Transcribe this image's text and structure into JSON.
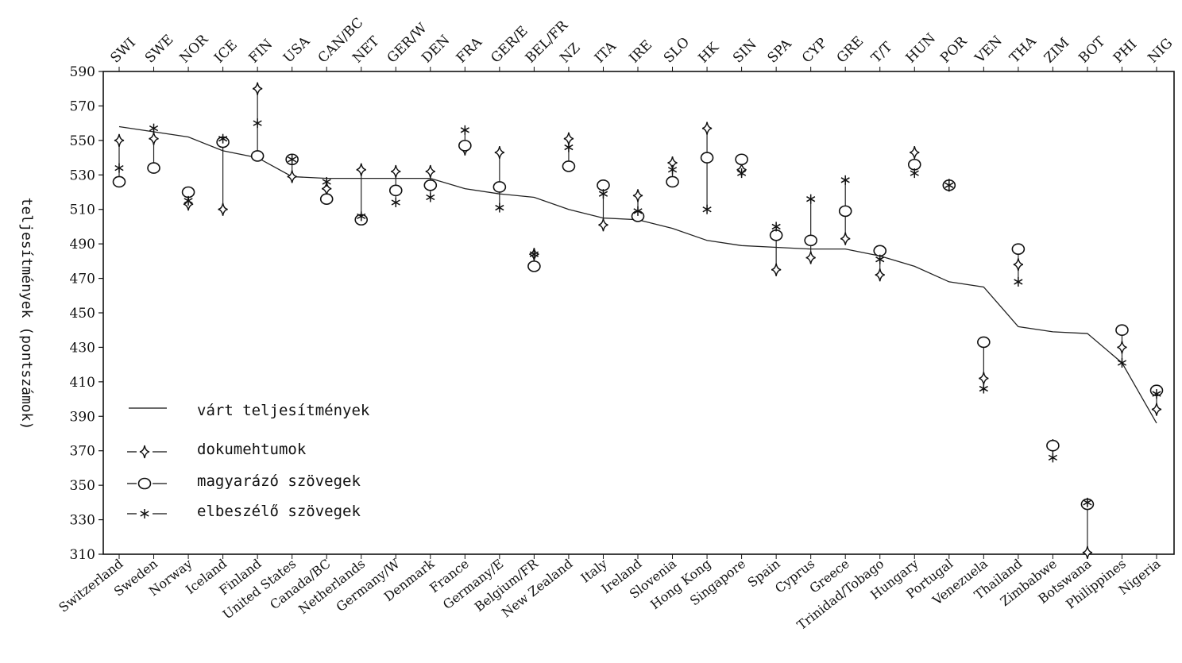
{
  "chart_data": {
    "type": "line",
    "ylabel": "teljesítmények (pontszámok)",
    "ylim": [
      310,
      590
    ],
    "yticks": [
      310,
      330,
      350,
      370,
      390,
      410,
      430,
      450,
      470,
      490,
      510,
      530,
      550,
      570,
      590
    ],
    "top_labels": [
      "SWI",
      "SWE",
      "NOR",
      "ICE",
      "FIN",
      "USA",
      "CAN/BC",
      "NET",
      "GER/W",
      "DEN",
      "FRA",
      "GER/E",
      "BEL/FR",
      "NZ",
      "ITA",
      "IRE",
      "SLO",
      "HK",
      "SIN",
      "SPA",
      "CYP",
      "GRE",
      "T/T",
      "HUN",
      "POR",
      "VEN",
      "THA",
      "ZIM",
      "BOT",
      "PHI",
      "NIG"
    ],
    "categories": [
      "Switzerland",
      "Sweden",
      "Norway",
      "Iceland",
      "Finland",
      "United States",
      "Canada/BC",
      "Netherlands",
      "Germany/W",
      "Denmark",
      "France",
      "Germany/E",
      "Belgium/FR",
      "New Zealand",
      "Italy",
      "Ireland",
      "Slovenia",
      "Hong Kong",
      "Singapore",
      "Spain",
      "Cyprus",
      "Greece",
      "Trinidad/Tobago",
      "Hungary",
      "Portugal",
      "Venezuela",
      "Thailand",
      "Zimbabwe",
      "Botswana",
      "Philippines",
      "Nigeria"
    ],
    "series": [
      {
        "name": "várt teljesítmények",
        "marker": "line",
        "values": [
          558,
          555,
          552,
          544,
          540,
          529,
          528,
          528,
          528,
          528,
          522,
          519,
          517,
          510,
          505,
          504,
          499,
          492,
          489,
          488,
          487,
          487,
          483,
          477,
          468,
          465,
          442,
          439,
          438,
          421,
          386
        ]
      },
      {
        "name": "dokumehtumok",
        "marker": "diamond",
        "values": [
          550,
          551,
          513,
          510,
          580,
          529,
          522,
          533,
          532,
          532,
          545,
          543,
          484,
          551,
          501,
          518,
          537,
          557,
          533,
          475,
          482,
          493,
          472,
          543,
          524,
          412,
          478,
          373,
          311,
          430,
          394
        ]
      },
      {
        "name": "magyarázó szövegek",
        "marker": "circle",
        "values": [
          526,
          534,
          520,
          549,
          541,
          539,
          516,
          504,
          521,
          524,
          547,
          523,
          477,
          535,
          524,
          506,
          526,
          540,
          539,
          495,
          492,
          509,
          486,
          536,
          524,
          433,
          487,
          373,
          339,
          440,
          405
        ]
      },
      {
        "name": "elbeszélő szövegek",
        "marker": "star",
        "values": [
          534,
          557,
          515,
          551,
          560,
          539,
          526,
          506,
          514,
          517,
          556,
          511,
          484,
          546,
          519,
          509,
          533,
          510,
          531,
          500,
          516,
          527,
          481,
          531,
          524,
          406,
          468,
          366,
          340,
          421,
          403
        ]
      }
    ],
    "legend": "bottom-left",
    "grid": false
  }
}
